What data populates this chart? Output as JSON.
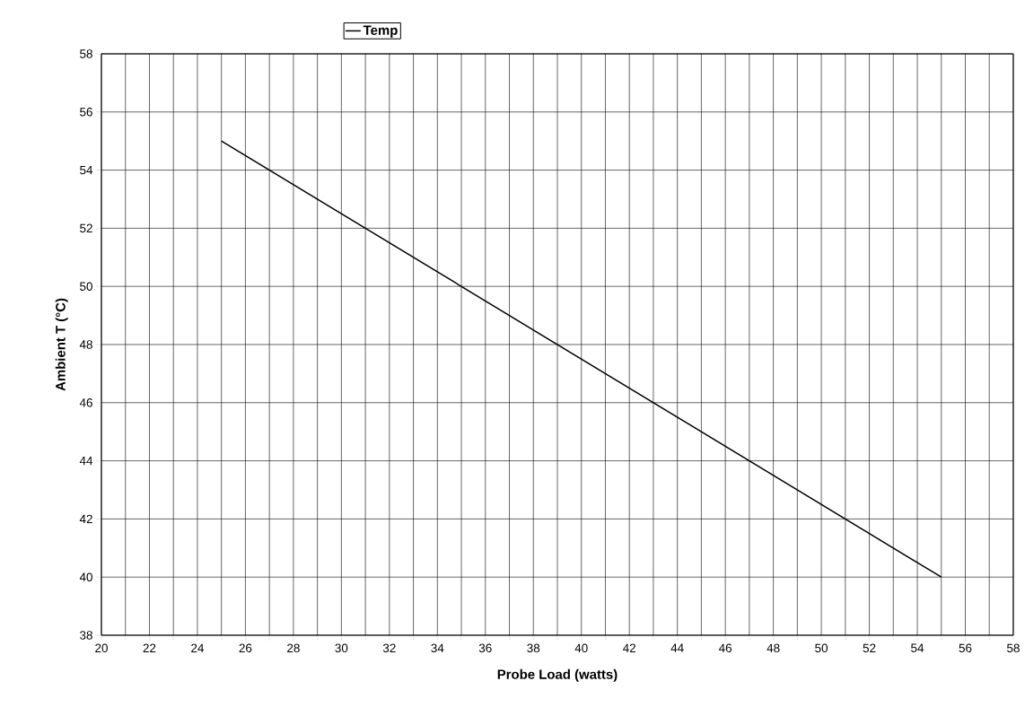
{
  "chart_data": {
    "type": "line",
    "xlabel": "Probe Load (watts)",
    "ylabel": "Ambient T (°C)",
    "series": [
      {
        "name": "Temp",
        "color": "#000000",
        "x": [
          25,
          55
        ],
        "values": [
          55,
          40
        ]
      }
    ],
    "xlim": [
      20,
      58
    ],
    "ylim": [
      38,
      58
    ],
    "xticks": [
      20,
      {
        "value": 21,
        "label": null
      },
      22,
      {
        "value": 23,
        "label": null
      },
      24,
      {
        "value": 25,
        "label": null
      },
      26,
      {
        "value": 27,
        "label": null
      },
      28,
      {
        "value": 29,
        "label": null
      },
      30,
      {
        "value": 31,
        "label": null
      },
      32,
      {
        "value": 33,
        "label": null
      },
      34,
      {
        "value": 35,
        "label": null
      },
      36,
      {
        "value": 37,
        "label": null
      },
      38,
      {
        "value": 39,
        "label": null
      },
      40,
      {
        "value": 41,
        "label": null
      },
      42,
      {
        "value": 43,
        "label": null
      },
      44,
      {
        "value": 45,
        "label": null
      },
      46,
      {
        "value": 47,
        "label": null
      },
      48,
      {
        "value": 49,
        "label": null
      },
      50,
      {
        "value": 51,
        "label": null
      },
      52,
      {
        "value": 53,
        "label": null
      },
      54,
      {
        "value": 55,
        "label": null
      },
      56,
      {
        "value": 57,
        "label": null
      },
      58
    ],
    "yticks": [
      38,
      40,
      42,
      44,
      46,
      48,
      50,
      52,
      54,
      56,
      58
    ],
    "grid": true,
    "legend": "top",
    "marker": "none",
    "line_style": "solid"
  }
}
